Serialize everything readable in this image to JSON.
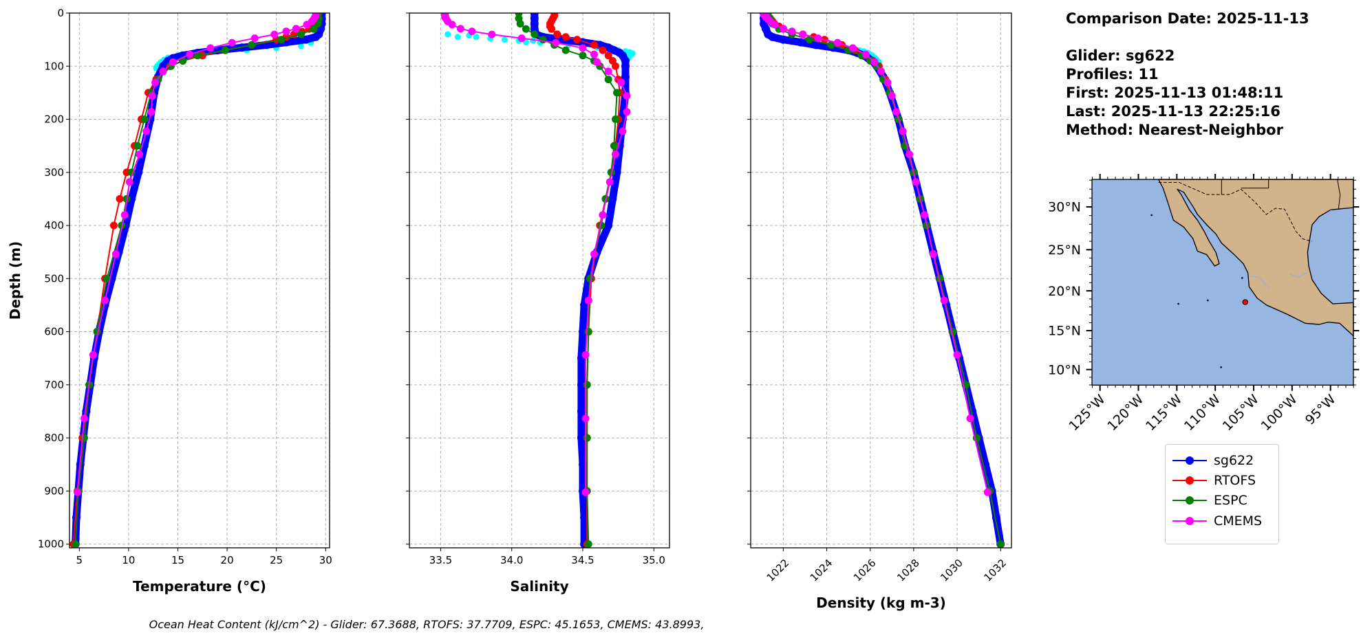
{
  "info": {
    "comparison": "Comparison Date: 2025-11-13",
    "glider": "Glider: sg622",
    "profiles": "Profiles: 11",
    "first": "First: 2025-11-13 01:48:11",
    "last": "Last: 2025-11-13 22:25:16",
    "method": "Method: Nearest-Neighbor"
  },
  "caption": "Ocean Heat Content (kJ/cm^2) - Glider: 67.3688,  RTOFS: 37.7709,  ESPC: 45.1653,  CMEMS: 43.8993,",
  "legend": {
    "placement": "below-map",
    "entries": [
      {
        "name": "sg622",
        "color": "#0000ff"
      },
      {
        "name": "RTOFS",
        "color": "#ff0000"
      },
      {
        "name": "ESPC",
        "color": "#008000"
      },
      {
        "name": "CMEMS",
        "color": "#ff00ff"
      }
    ]
  },
  "map": {
    "extent": {
      "lon": [
        -126,
        -92
      ],
      "lat": [
        8,
        33
      ]
    },
    "projection": "mercator",
    "land_color": "#d2b48c",
    "ocean_color": "#97b6e1",
    "lon_ticks": [
      -125,
      -120,
      -115,
      -110,
      -105,
      -100,
      -95
    ],
    "lon_tick_labels": [
      "125°W",
      "120°W",
      "115°W",
      "110°W",
      "105°W",
      "100°W",
      "95°W"
    ],
    "lat_ticks": [
      10,
      15,
      20,
      25,
      30
    ],
    "lat_tick_labels": [
      "10°N",
      "15°N",
      "20°N",
      "25°N",
      "30°N"
    ],
    "glider_position": {
      "lon": -106.1,
      "lat": 18.6,
      "color": "#ff0000"
    }
  },
  "chart_data": [
    {
      "type": "line",
      "xlabel": "Temperature (°C)",
      "ylabel": "Depth (m)",
      "xlim": [
        4.0,
        30.4
      ],
      "ylim": [
        1007,
        0
      ],
      "xticks": [
        5,
        10,
        15,
        20,
        25,
        30
      ],
      "xtick_labels": [
        "5",
        "10",
        "15",
        "20",
        "25",
        "30"
      ],
      "yticks": [
        0,
        100,
        200,
        300,
        400,
        500,
        600,
        700,
        800,
        900,
        1000
      ],
      "ytick_labels": [
        "0",
        "100",
        "200",
        "300",
        "400",
        "500",
        "600",
        "700",
        "800",
        "900",
        "1000"
      ],
      "grid": true,
      "raw": {
        "color": "#00ffff",
        "depth": [
          62,
          66,
          70,
          72,
          75,
          78,
          80,
          84,
          88,
          92,
          96,
          100,
          104,
          56,
          60
        ],
        "values": [
          27.5,
          25,
          22,
          19,
          17.5,
          16,
          15,
          14,
          13.6,
          13.3,
          13.1,
          12.9,
          12.8,
          28.5,
          24
        ]
      },
      "series": [
        {
          "name": "sg622",
          "color": "#0000ff",
          "depth": [
            0,
            10,
            20,
            30,
            40,
            45,
            50,
            55,
            60,
            65,
            70,
            75,
            80,
            85,
            90,
            100,
            120,
            150,
            200,
            250,
            300,
            350,
            400,
            450,
            500,
            550,
            600,
            650,
            700,
            750,
            800,
            850,
            900,
            950,
            1000
          ],
          "values": [
            29.6,
            29.6,
            29.6,
            29.5,
            29.3,
            29.0,
            28,
            26,
            24,
            21.5,
            19,
            17,
            15.5,
            14.5,
            14,
            13.5,
            13,
            12.6,
            12.2,
            11.6,
            11.0,
            10.3,
            9.7,
            9.0,
            8.3,
            7.6,
            7.0,
            6.5,
            6.1,
            5.7,
            5.4,
            5.1,
            4.9,
            4.7,
            4.6
          ]
        },
        {
          "name": "RTOFS",
          "color": "#ff0000",
          "depth": [
            0,
            5,
            10,
            15,
            20,
            25,
            30,
            35,
            40,
            45,
            50,
            60,
            70,
            80,
            90,
            100,
            125,
            150,
            200,
            250,
            300,
            350,
            400,
            500,
            600,
            700,
            800,
            900,
            1000
          ],
          "values": [
            29.2,
            29.2,
            29.2,
            29.1,
            29.0,
            28.8,
            28.3,
            27.6,
            26.8,
            26.0,
            25.0,
            22.5,
            19.8,
            17.5,
            15.5,
            14.2,
            12.8,
            12.0,
            11.3,
            10.6,
            9.8,
            9.1,
            8.5,
            7.6,
            6.8,
            6.0,
            5.3,
            4.8,
            4.4
          ]
        },
        {
          "name": "ESPC",
          "color": "#008000",
          "depth": [
            0,
            10,
            20,
            30,
            40,
            50,
            60,
            70,
            80,
            90,
            100,
            125,
            150,
            200,
            250,
            300,
            350,
            400,
            500,
            600,
            700,
            800,
            900,
            1000
          ],
          "values": [
            29.3,
            29.3,
            29.2,
            28.8,
            27.5,
            25.5,
            22.5,
            19.8,
            17.0,
            15.5,
            14.3,
            13.0,
            12.3,
            11.6,
            10.9,
            10.3,
            9.8,
            9.3,
            7.8,
            6.8,
            6.0,
            5.5,
            4.9,
            4.6
          ]
        },
        {
          "name": "CMEMS",
          "color": "#ff00ff",
          "depth": [
            0.5,
            2.6,
            5.1,
            7.9,
            11.4,
            15.8,
            21.6,
            29.4,
            34.4,
            40.3,
            47.4,
            55.8,
            65.8,
            77.9,
            92.3,
            109.7,
            130.7,
            155.9,
            186.1,
            222.5,
            266,
            318.1,
            380.2,
            453.9,
            541.1,
            643.6,
            763.3,
            902.3
          ],
          "values": [
            29.0,
            29.0,
            29.0,
            28.9,
            28.8,
            28.6,
            28.1,
            27.0,
            26.0,
            24.8,
            22.8,
            20.5,
            18.3,
            16.2,
            14.5,
            13.5,
            12.7,
            12.4,
            12.3,
            11.8,
            11.1,
            10.1,
            9.6,
            8.7,
            7.6,
            6.4,
            5.5,
            4.8
          ]
        }
      ]
    },
    {
      "type": "line",
      "xlabel": "Salinity",
      "xlim": [
        33.28,
        35.11
      ],
      "ylim": [
        1007,
        0
      ],
      "xticks": [
        33.5,
        34.0,
        34.5,
        35.0
      ],
      "xtick_labels": [
        "33.5",
        "34.0",
        "34.5",
        "35.0"
      ],
      "yticks": [
        0,
        100,
        200,
        300,
        400,
        500,
        600,
        700,
        800,
        900,
        1000
      ],
      "grid": true,
      "raw": {
        "color": "#00ffff",
        "depth": [
          40,
          42,
          45,
          48,
          50,
          52,
          55,
          56,
          58,
          60,
          62,
          65,
          68,
          70,
          72,
          74,
          76,
          78,
          80,
          85,
          52,
          45
        ],
        "values": [
          33.55,
          33.7,
          33.75,
          33.85,
          33.95,
          34.05,
          34.1,
          34.2,
          34.3,
          34.4,
          34.5,
          34.6,
          34.7,
          34.75,
          34.8,
          34.83,
          34.85,
          34.84,
          34.8,
          34.82,
          34.15,
          33.62
        ]
      },
      "series": [
        {
          "name": "sg622",
          "color": "#0000ff",
          "depth": [
            0,
            10,
            20,
            30,
            40,
            45,
            50,
            55,
            60,
            65,
            70,
            75,
            80,
            90,
            100,
            120,
            150,
            200,
            250,
            300,
            350,
            400,
            450,
            500,
            550,
            600,
            650,
            700,
            750,
            800,
            850,
            900,
            950,
            1000
          ],
          "values": [
            34.16,
            34.16,
            34.16,
            34.16,
            34.17,
            34.22,
            34.35,
            34.5,
            34.62,
            34.68,
            34.72,
            34.76,
            34.78,
            34.8,
            34.8,
            34.8,
            34.8,
            34.78,
            34.76,
            34.74,
            34.71,
            34.68,
            34.6,
            34.54,
            34.51,
            34.5,
            34.49,
            34.49,
            34.49,
            34.49,
            34.5,
            34.5,
            34.51,
            34.51
          ]
        },
        {
          "name": "RTOFS",
          "color": "#ff0000",
          "depth": [
            0,
            5,
            10,
            15,
            20,
            25,
            30,
            40,
            45,
            50,
            60,
            70,
            80,
            90,
            100,
            125,
            150,
            200,
            250,
            300,
            350,
            400,
            500,
            600,
            700,
            800,
            900,
            1000
          ],
          "values": [
            34.3,
            34.3,
            34.29,
            34.28,
            34.27,
            34.27,
            34.28,
            34.32,
            34.38,
            34.46,
            34.58,
            34.64,
            34.68,
            34.71,
            34.73,
            34.75,
            34.76,
            34.75,
            34.73,
            34.7,
            34.66,
            34.62,
            34.56,
            34.54,
            34.53,
            34.53,
            34.53,
            34.53
          ]
        },
        {
          "name": "ESPC",
          "color": "#008000",
          "depth": [
            0,
            10,
            20,
            30,
            40,
            50,
            60,
            70,
            80,
            90,
            100,
            125,
            150,
            200,
            250,
            300,
            350,
            400,
            500,
            600,
            700,
            800,
            900,
            1000
          ],
          "values": [
            34.05,
            34.05,
            34.06,
            34.1,
            34.16,
            34.22,
            34.3,
            34.38,
            34.5,
            34.58,
            34.62,
            34.68,
            34.74,
            34.73,
            34.72,
            34.7,
            34.66,
            34.63,
            34.55,
            34.54,
            34.53,
            34.53,
            34.53,
            34.54
          ]
        },
        {
          "name": "CMEMS",
          "color": "#ff00ff",
          "depth": [
            0.5,
            2.6,
            5.1,
            7.9,
            11.4,
            15.8,
            21.6,
            29.4,
            34.4,
            40.3,
            47.4,
            55.8,
            65.8,
            77.9,
            92.3,
            109.7,
            130.7,
            155.9,
            186.1,
            222.5,
            266,
            318.1,
            380.2,
            453.9,
            541.1,
            643.6,
            763.3,
            902.3
          ],
          "values": [
            33.53,
            33.53,
            33.53,
            33.53,
            33.54,
            33.55,
            33.58,
            33.64,
            33.72,
            33.86,
            34.07,
            34.31,
            34.5,
            34.58,
            34.6,
            34.68,
            34.77,
            34.81,
            34.81,
            34.78,
            34.73,
            34.69,
            34.64,
            34.58,
            34.54,
            34.52,
            34.52,
            34.52
          ]
        }
      ]
    },
    {
      "type": "line",
      "xlabel": "Density (kg m-3)",
      "xlim": [
        1020.5,
        1032.5
      ],
      "ylim": [
        1007,
        0
      ],
      "xticks": [
        1022,
        1024,
        1026,
        1028,
        1030,
        1032
      ],
      "xtick_labels": [
        "1022",
        "1024",
        "1026",
        "1028",
        "1030",
        "1032"
      ],
      "yticks": [
        0,
        100,
        200,
        300,
        400,
        500,
        600,
        700,
        800,
        900,
        1000
      ],
      "grid": true,
      "raw": {
        "color": "#00ffff",
        "depth": [
          60,
          64,
          68,
          70,
          72,
          75,
          78,
          80,
          84,
          88,
          92
        ],
        "values": [
          1024.2,
          1024.8,
          1025.2,
          1025.5,
          1025.7,
          1025.9,
          1026.0,
          1026.1,
          1026.2,
          1026.3,
          1026.4
        ]
      },
      "series": [
        {
          "name": "sg622",
          "color": "#0000ff",
          "depth": [
            0,
            10,
            20,
            30,
            40,
            45,
            50,
            55,
            60,
            65,
            70,
            75,
            80,
            85,
            90,
            100,
            120,
            150,
            200,
            250,
            300,
            350,
            400,
            450,
            500,
            550,
            600,
            650,
            700,
            750,
            800,
            850,
            900,
            950,
            1000
          ],
          "values": [
            1021.1,
            1021.1,
            1021.1,
            1021.2,
            1021.3,
            1021.5,
            1022.0,
            1022.8,
            1023.5,
            1024.3,
            1025.0,
            1025.4,
            1025.7,
            1025.9,
            1026.1,
            1026.3,
            1026.6,
            1026.9,
            1027.3,
            1027.6,
            1028.0,
            1028.3,
            1028.6,
            1028.9,
            1029.2,
            1029.5,
            1029.8,
            1030.1,
            1030.4,
            1030.7,
            1031.0,
            1031.3,
            1031.6,
            1031.8,
            1032.0
          ]
        },
        {
          "name": "RTOFS",
          "color": "#ff0000",
          "depth": [
            0,
            5,
            10,
            15,
            20,
            25,
            30,
            35,
            40,
            45,
            50,
            60,
            70,
            80,
            90,
            100,
            125,
            150,
            200,
            250,
            300,
            350,
            400,
            500,
            600,
            700,
            800,
            900,
            1000
          ],
          "values": [
            1021.3,
            1021.3,
            1021.4,
            1021.5,
            1021.6,
            1021.8,
            1022.0,
            1022.4,
            1022.9,
            1023.4,
            1023.9,
            1024.7,
            1025.3,
            1025.8,
            1026.1,
            1026.4,
            1026.7,
            1026.9,
            1027.3,
            1027.6,
            1028.0,
            1028.3,
            1028.6,
            1029.2,
            1029.8,
            1030.4,
            1030.9,
            1031.5,
            1032.0
          ]
        },
        {
          "name": "ESPC",
          "color": "#008000",
          "depth": [
            0,
            10,
            20,
            30,
            40,
            50,
            60,
            70,
            80,
            90,
            100,
            125,
            150,
            200,
            250,
            300,
            350,
            400,
            500,
            600,
            700,
            800,
            900,
            1000
          ],
          "values": [
            1021.3,
            1021.4,
            1021.5,
            1021.8,
            1022.4,
            1023.2,
            1024.2,
            1025.0,
            1025.6,
            1026.0,
            1026.3,
            1026.6,
            1026.9,
            1027.3,
            1027.6,
            1028.0,
            1028.3,
            1028.6,
            1029.2,
            1029.8,
            1030.4,
            1030.9,
            1031.5,
            1032.0
          ]
        },
        {
          "name": "CMEMS",
          "color": "#ff00ff",
          "depth": [
            0.5,
            2.6,
            5.1,
            7.9,
            11.4,
            15.8,
            21.6,
            29.4,
            34.4,
            40.3,
            47.4,
            55.8,
            65.8,
            77.9,
            92.3,
            109.7,
            130.7,
            155.9,
            186.1,
            222.5,
            266,
            318.1,
            380.2,
            453.9,
            541.1,
            643.6,
            763.3,
            902.3
          ],
          "values": [
            1021.1,
            1021.1,
            1021.2,
            1021.2,
            1021.3,
            1021.4,
            1021.6,
            1022.0,
            1022.4,
            1022.9,
            1023.6,
            1024.5,
            1025.2,
            1025.8,
            1026.2,
            1026.5,
            1026.8,
            1027.0,
            1027.2,
            1027.5,
            1027.8,
            1028.1,
            1028.5,
            1028.9,
            1029.4,
            1030.0,
            1030.6,
            1031.4
          ]
        }
      ]
    }
  ]
}
